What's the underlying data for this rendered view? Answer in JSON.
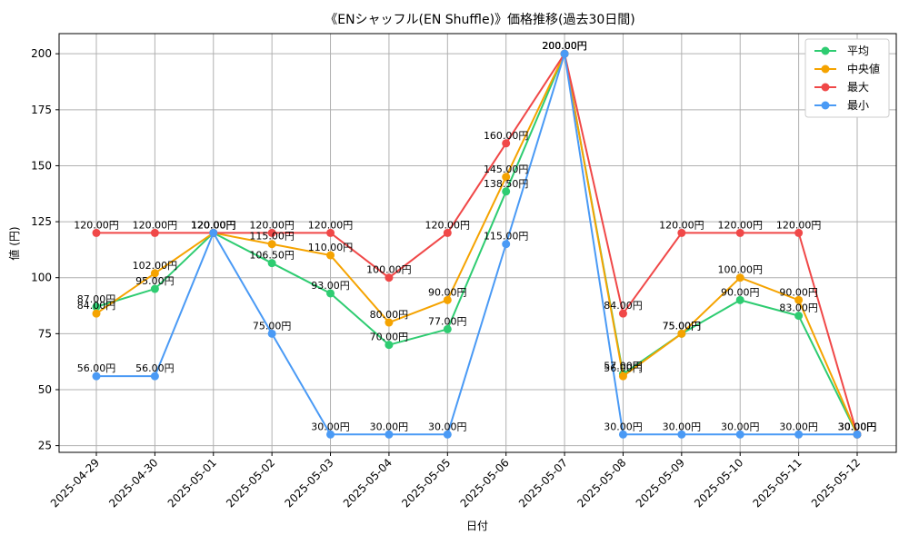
{
  "chart_data": {
    "type": "line",
    "title": "《ENシャッフル(EN Shuffle)》価格推移(過去30日間)",
    "xlabel": "日付",
    "ylabel": "値 (円)",
    "ylim": [
      22,
      209
    ],
    "yticks": [
      25,
      50,
      75,
      100,
      125,
      150,
      175,
      200
    ],
    "grid": true,
    "legend_position": "top-right",
    "categories": [
      "2025-04-29",
      "2025-04-30",
      "2025-05-01",
      "2025-05-02",
      "2025-05-03",
      "2025-05-04",
      "2025-05-05",
      "2025-05-06",
      "2025-05-07",
      "2025-05-08",
      "2025-05-09",
      "2025-05-10",
      "2025-05-11",
      "2025-05-12"
    ],
    "label_suffix": "円",
    "series": [
      {
        "name": "平均",
        "color": "#2ecc71",
        "values": [
          87,
          95,
          120,
          106.5,
          93,
          70,
          77,
          138.5,
          200,
          57,
          75,
          90,
          83,
          30
        ]
      },
      {
        "name": "中央値",
        "color": "#f5a300",
        "values": [
          84,
          102,
          120,
          115,
          110,
          80,
          90,
          145,
          200,
          56,
          75,
          100,
          90,
          30
        ]
      },
      {
        "name": "最大",
        "color": "#f04848",
        "values": [
          120,
          120,
          120,
          120,
          120,
          100,
          120,
          160,
          200,
          84,
          120,
          120,
          120,
          30
        ]
      },
      {
        "name": "最小",
        "color": "#4a9af5",
        "values": [
          56,
          56,
          120,
          75,
          30,
          30,
          30,
          115,
          200,
          30,
          30,
          30,
          30,
          30
        ]
      }
    ]
  }
}
